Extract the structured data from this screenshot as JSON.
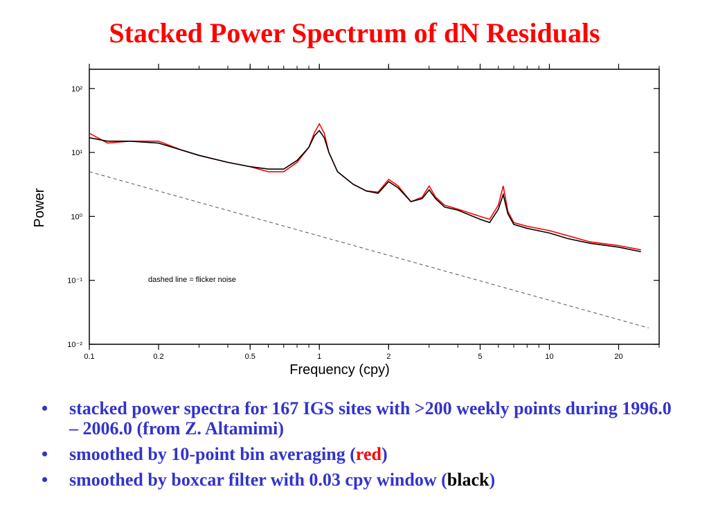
{
  "slide": {
    "title": "Stacked Power Spectrum of dN Residuals",
    "bullets": [
      {
        "text": "stacked power spectra for 167 IGS sites with >200 weekly points during 1996.0 – 2006.0  (from Z. Altamimi)"
      },
      {
        "prefix": "smoothed by 10-point bin averaging (",
        "highlight": "red",
        "suffix": ")",
        "highlight_color": "#ff0000"
      },
      {
        "prefix": "smoothed by boxcar filter with 0.03 cpy window (",
        "highlight": "black",
        "suffix": ")",
        "highlight_color": "#000000"
      }
    ],
    "bullet_symbol": "•"
  },
  "chart_data": {
    "type": "line",
    "title": "",
    "xlabel": "Frequency (cpy)",
    "ylabel": "Power",
    "x_scale": "log",
    "y_scale": "log",
    "xlim": [
      0.1,
      30
    ],
    "ylim": [
      0.01,
      200
    ],
    "x_ticks": [
      0.1,
      0.2,
      0.5,
      1,
      2,
      5,
      10,
      20
    ],
    "x_tick_labels": [
      "0.1",
      "0.2",
      "0.5",
      "1",
      "2",
      "5",
      "10",
      "20"
    ],
    "y_ticks": [
      100,
      10,
      1,
      0.1,
      0.01
    ],
    "y_tick_labels": [
      "10²",
      "10¹",
      "10⁰",
      "10⁻¹",
      "10⁻²"
    ],
    "grid": false,
    "annotation": "dashed line = flicker noise",
    "series": [
      {
        "color": "#ff0000",
        "style": "solid",
        "x": [
          0.1,
          0.12,
          0.15,
          0.2,
          0.25,
          0.3,
          0.4,
          0.5,
          0.6,
          0.7,
          0.8,
          0.9,
          0.95,
          1.0,
          1.05,
          1.1,
          1.2,
          1.4,
          1.6,
          1.8,
          2.0,
          2.2,
          2.5,
          2.8,
          3.0,
          3.2,
          3.5,
          4,
          5,
          5.5,
          6.0,
          6.3,
          6.6,
          7,
          8,
          10,
          12,
          15,
          20,
          25
        ],
        "y": [
          20,
          14,
          15,
          15,
          11,
          9,
          7,
          6,
          5,
          5,
          7,
          12,
          20,
          28,
          20,
          10,
          5,
          3.2,
          2.5,
          2.4,
          3.8,
          3.0,
          1.7,
          2.0,
          3.0,
          2.0,
          1.5,
          1.3,
          1.0,
          0.9,
          1.5,
          3.0,
          1.2,
          0.8,
          0.7,
          0.6,
          0.5,
          0.4,
          0.35,
          0.3
        ]
      },
      {
        "color": "#000000",
        "style": "solid",
        "x": [
          0.1,
          0.12,
          0.15,
          0.2,
          0.25,
          0.3,
          0.4,
          0.5,
          0.6,
          0.7,
          0.8,
          0.9,
          0.95,
          1.0,
          1.05,
          1.1,
          1.2,
          1.4,
          1.6,
          1.8,
          2.0,
          2.2,
          2.5,
          2.8,
          3.0,
          3.2,
          3.5,
          4,
          5,
          5.5,
          6.0,
          6.3,
          6.6,
          7,
          8,
          10,
          12,
          15,
          20,
          25
        ],
        "y": [
          17,
          15,
          15,
          14,
          11,
          9,
          7,
          6,
          5.5,
          5.5,
          7.5,
          12,
          18,
          22,
          17,
          10,
          5,
          3.2,
          2.5,
          2.3,
          3.5,
          2.8,
          1.7,
          1.9,
          2.6,
          1.9,
          1.4,
          1.25,
          0.9,
          0.8,
          1.3,
          2.2,
          1.1,
          0.75,
          0.65,
          0.55,
          0.45,
          0.38,
          0.33,
          0.28
        ]
      },
      {
        "name": "flicker noise",
        "color": "#555555",
        "style": "dashed",
        "x": [
          0.1,
          27
        ],
        "y": [
          5,
          0.018
        ]
      }
    ]
  }
}
